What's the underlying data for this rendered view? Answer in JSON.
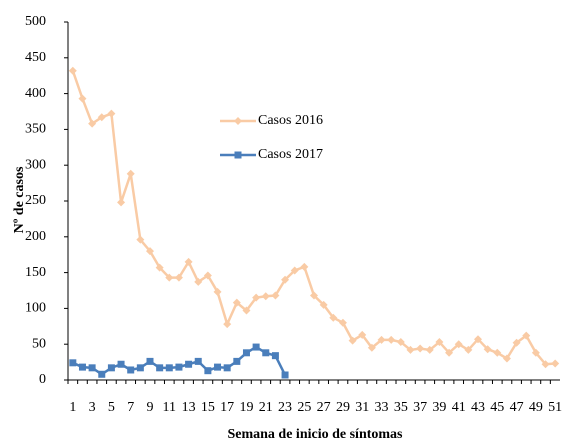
{
  "chart_data": {
    "type": "line",
    "y_label": "Nº de casos",
    "x_label": "Semana de inicio de síntomas",
    "categories": [
      "1",
      null,
      "3",
      null,
      "5",
      null,
      "7",
      null,
      "9",
      null,
      "11",
      null,
      "13",
      null,
      "15",
      null,
      "17",
      null,
      "19",
      null,
      "21",
      null,
      "23",
      null,
      "25",
      null,
      "27",
      null,
      "29",
      null,
      "31",
      null,
      "33",
      null,
      "35",
      null,
      "37",
      null,
      "39",
      null,
      "41",
      null,
      "43",
      null,
      "45",
      null,
      "47",
      null,
      "49",
      null,
      "51"
    ],
    "series": [
      {
        "name": "Casos 2016",
        "color": "#f9cba5",
        "marker": "diamond",
        "values": [
          432,
          393,
          358,
          367,
          372,
          248,
          288,
          196,
          180,
          157,
          143,
          143,
          165,
          137,
          146,
          123,
          78,
          108,
          97,
          115,
          117,
          118,
          140,
          153,
          158,
          118,
          105,
          87,
          80,
          55,
          63,
          45,
          56,
          56,
          53,
          42,
          44,
          42,
          53,
          38,
          50,
          42,
          57,
          43,
          38,
          30,
          52,
          62,
          38,
          22,
          23
        ]
      },
      {
        "name": "Casos 2017",
        "color": "#4a7ebb",
        "marker": "square",
        "values": [
          24,
          18,
          17,
          8,
          17,
          22,
          14,
          17,
          26,
          17,
          17,
          18,
          22,
          26,
          13,
          18,
          17,
          26,
          38,
          46,
          38,
          34,
          7,
          null,
          null,
          null,
          null,
          null,
          null,
          null,
          null,
          null,
          null,
          null,
          null,
          null,
          null,
          null,
          null,
          null,
          null,
          null,
          null,
          null,
          null,
          null,
          null,
          null,
          null,
          null,
          null
        ]
      }
    ],
    "ylim": [
      0,
      500
    ],
    "yticks": [
      0,
      50,
      100,
      150,
      200,
      250,
      300,
      350,
      400,
      450,
      500
    ],
    "grid": false
  }
}
